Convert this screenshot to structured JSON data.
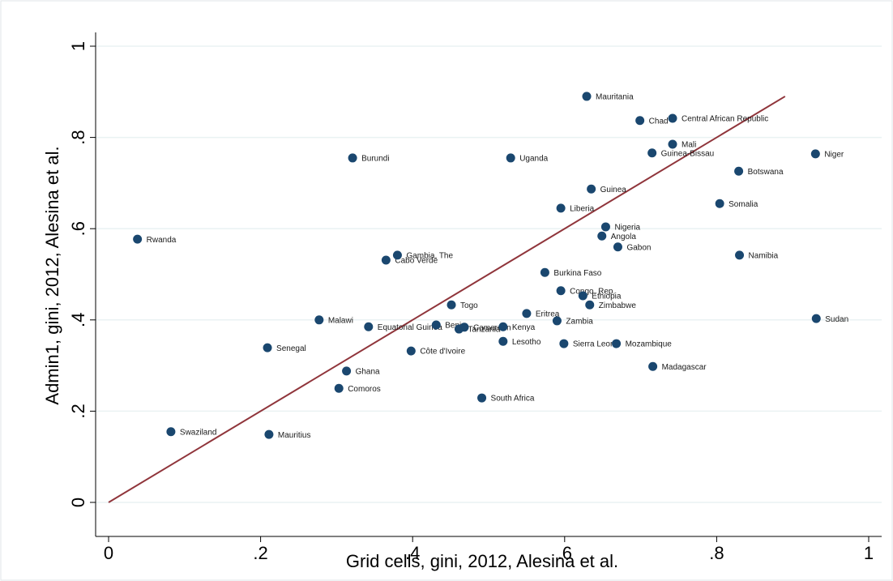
{
  "chart_data": {
    "type": "scatter",
    "x_label": "Grid cells, gini, 2012, Alesina et al.",
    "y_label": "Admin1, gini, 2012, Alesina et al.",
    "xlim": [
      0,
      1
    ],
    "ylim": [
      0,
      1
    ],
    "xticks": [
      0,
      {
        "value": 0.2,
        "label": ".2"
      },
      {
        "value": 0.4,
        "label": ".4"
      },
      {
        "value": 0.6,
        "label": ".6"
      },
      {
        "value": 0.8,
        "label": ".8"
      },
      1
    ],
    "yticks": [
      0,
      {
        "value": 0.2,
        "label": ".2"
      },
      {
        "value": 0.4,
        "label": ".4"
      },
      {
        "value": 0.6,
        "label": ".6"
      },
      {
        "value": 0.8,
        "label": ".8"
      },
      1
    ],
    "grid": true,
    "color": "#1a476f",
    "labels": [
      "Rwanda",
      "Swaziland",
      "Mauritius",
      "Senegal",
      "Malawi",
      "Ghana",
      "Comoros",
      "Burundi",
      "Equatorial Guinea",
      "Cabo Verde",
      "Gambia, The",
      "Côte d'Ivoire",
      "Togo",
      "Benin",
      "Tanzania",
      "Cameroon",
      "Kenya",
      "Lesotho",
      "South Africa",
      "Uganda",
      "Eritrea",
      "Burkina Faso",
      "Zambia",
      "Congo, Rep.",
      "Liberia",
      "Sierra Leone",
      "Mauritania",
      "Ethiopia",
      "Zimbabwe",
      "Guinea",
      "Nigeria",
      "Angola",
      "Gabon",
      "Mozambique",
      "Chad",
      "Central African Republic",
      "Mali",
      "Guinea-Bissau",
      "Madagascar",
      "Botswana",
      "Somalia",
      "Namibia",
      "Niger",
      "Sudan"
    ],
    "x": [
      0.038,
      0.082,
      0.211,
      0.209,
      0.277,
      0.313,
      0.303,
      0.321,
      0.342,
      0.365,
      0.38,
      0.398,
      0.451,
      0.431,
      0.461,
      0.468,
      0.519,
      0.519,
      0.491,
      0.529,
      0.55,
      0.574,
      0.59,
      0.595,
      0.595,
      0.599,
      0.629,
      0.624,
      0.633,
      0.635,
      0.654,
      0.649,
      0.67,
      0.668,
      0.699,
      0.742,
      0.742,
      0.715,
      0.716,
      0.829,
      0.804,
      0.83,
      0.93,
      0.931
    ],
    "y": [
      0.577,
      0.155,
      0.149,
      0.339,
      0.4,
      0.288,
      0.25,
      0.755,
      0.385,
      0.531,
      0.542,
      0.332,
      0.433,
      0.389,
      0.38,
      0.384,
      0.385,
      0.353,
      0.229,
      0.755,
      0.414,
      0.504,
      0.398,
      0.464,
      0.645,
      0.348,
      0.89,
      0.453,
      0.433,
      0.687,
      0.604,
      0.584,
      0.56,
      0.348,
      0.837,
      0.842,
      0.785,
      0.766,
      0.298,
      0.726,
      0.655,
      0.542,
      0.764,
      0.403
    ],
    "fit_line": {
      "color": "#90353b",
      "x": [
        0,
        0.89
      ],
      "y": [
        0,
        0.89
      ]
    }
  }
}
